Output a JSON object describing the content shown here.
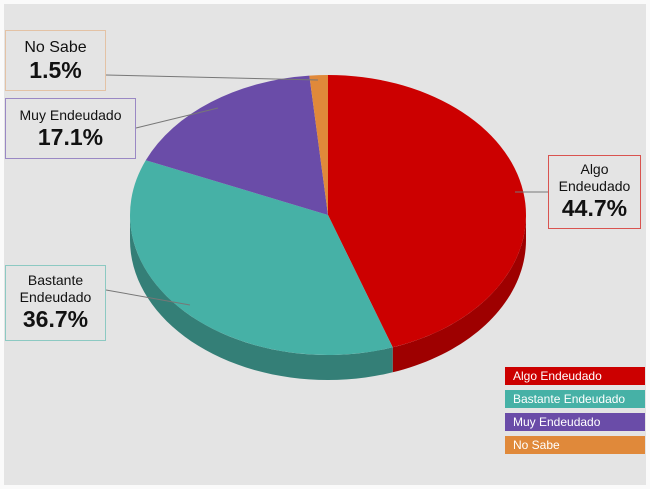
{
  "chart_data": {
    "type": "pie",
    "style": "3d",
    "legend_position": "bottom-right",
    "slices": [
      {
        "label": "Algo Endeudado",
        "name_lines": [
          "Algo",
          "Endeudado"
        ],
        "value": 44.7,
        "value_label": "44.7%",
        "color": "#cc0000",
        "side_color": "#9e0000"
      },
      {
        "label": "Bastante Endeudado",
        "name_lines": [
          "Bastante",
          "Endeudado"
        ],
        "value": 36.7,
        "value_label": "36.7%",
        "color": "#46b1a6",
        "side_color": "#347f77"
      },
      {
        "label": "Muy Endeudado",
        "name_lines": [
          "Muy Endeudado"
        ],
        "value": 17.1,
        "value_label": "17.1%",
        "color": "#6a4ca8",
        "side_color": "#4e377d"
      },
      {
        "label": "No Sabe",
        "name_lines": [
          "No Sabe"
        ],
        "value": 1.5,
        "value_label": "1.5%",
        "color": "#e0893a",
        "side_color": "#a8652a"
      }
    ]
  }
}
